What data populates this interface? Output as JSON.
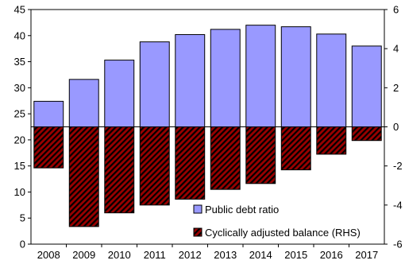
{
  "chart_data": {
    "type": "bar",
    "categories": [
      "2008",
      "2009",
      "2010",
      "2011",
      "2012",
      "2013",
      "2014",
      "2015",
      "2016",
      "2017"
    ],
    "series": [
      {
        "name": "Public debt ratio",
        "axis": "left",
        "color": "#9999ff",
        "values": [
          27.4,
          31.6,
          35.3,
          38.8,
          40.2,
          41.2,
          42.0,
          41.7,
          40.3,
          38.0
        ]
      },
      {
        "name": "Cyclically adjusted balance (RHS)",
        "axis": "right",
        "color": "#990000",
        "pattern": "black-diagonal-hatch",
        "values": [
          -2.1,
          -5.1,
          -4.4,
          -4.0,
          -3.7,
          -3.2,
          -2.9,
          -2.2,
          -1.4,
          -0.7
        ]
      }
    ],
    "left_axis": {
      "ylim": [
        0,
        45
      ],
      "ticks": [
        "0",
        "5",
        "10",
        "15",
        "20",
        "25",
        "30",
        "35",
        "40",
        "45"
      ]
    },
    "right_axis": {
      "ylim": [
        -6,
        6
      ],
      "ticks": [
        "-6",
        "-4",
        "-2",
        "0",
        "2",
        "4",
        "6"
      ]
    },
    "legend_position": "lower-right",
    "grid": false
  }
}
